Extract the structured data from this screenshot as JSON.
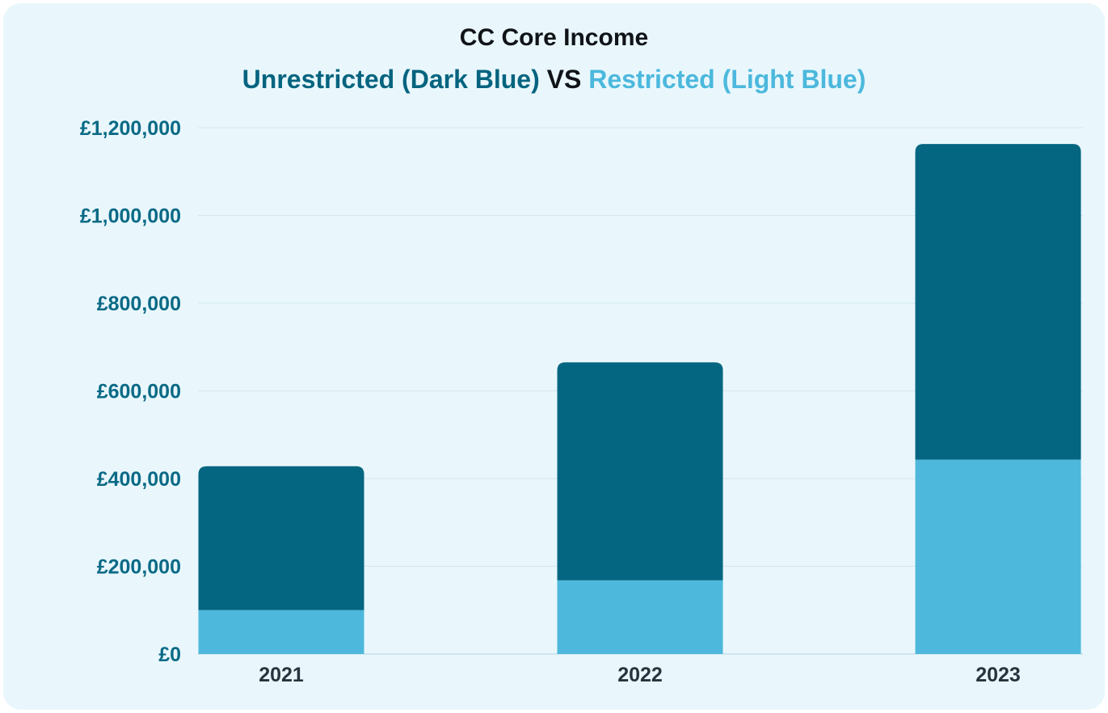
{
  "chart_data": {
    "type": "bar",
    "stacked": true,
    "title": "CC Core Income",
    "subtitle": {
      "part1": "Unrestricted (Dark Blue)",
      "part2": "VS",
      "part3": "Restricted (Light Blue)"
    },
    "categories": [
      "2021",
      "2022",
      "2023"
    ],
    "series": [
      {
        "key": "restricted",
        "values": [
          100000,
          168000,
          443000
        ],
        "color": "#4db8dc"
      },
      {
        "key": "unrestricted",
        "values": [
          328000,
          497000,
          720000
        ],
        "color": "#056681"
      }
    ],
    "ylim": [
      0,
      1200000
    ],
    "yticks": [
      {
        "value": 0,
        "label": "£0"
      },
      {
        "value": 200000,
        "label": "£200,000"
      },
      {
        "value": 400000,
        "label": "£400,000"
      },
      {
        "value": 600000,
        "label": "£600,000"
      },
      {
        "value": 800000,
        "label": "£800,000"
      },
      {
        "value": 1000000,
        "label": "£1,000,000"
      },
      {
        "value": 1200000,
        "label": "£1,200,000"
      }
    ],
    "grid": true,
    "legend": "none"
  },
  "colors": {
    "background": "#e9f7fc",
    "unrestricted": "#056681",
    "restricted": "#4db8dc",
    "tick_text": "#0a6a86",
    "category_text": "#27333d",
    "grid": "#d3e7ef"
  }
}
